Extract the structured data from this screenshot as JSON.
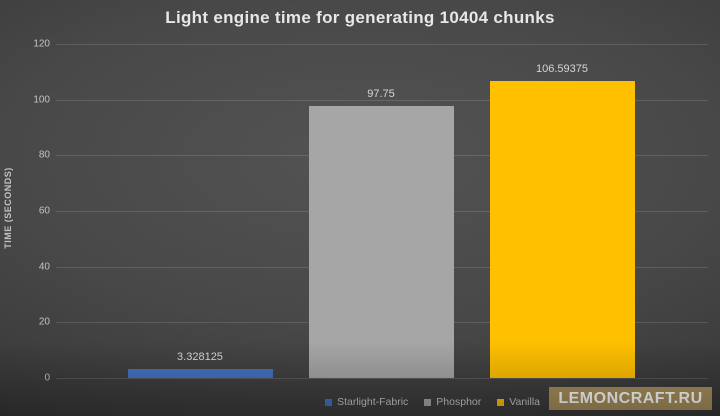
{
  "title": "Light engine time for generating 10404 chunks",
  "chart_data": {
    "type": "bar",
    "categories": [
      "Starlight-Fabric",
      "Phosphor",
      "Vanilla"
    ],
    "values": [
      3.328125,
      97.75,
      106.59375
    ],
    "value_labels": [
      "3.328125",
      "97.75",
      "106.59375"
    ],
    "bar_colors": [
      "#4472c4",
      "#a6a6a6",
      "#ffc000"
    ],
    "title": "Light engine time for generating 10404 chunks",
    "xlabel": "",
    "ylabel": "TIME (SECONDS)",
    "ylim": [
      0,
      120
    ],
    "yticks": [
      0,
      20,
      40,
      60,
      80,
      100,
      120
    ],
    "grid": true,
    "legend_position": "bottom-center"
  },
  "legend": {
    "items": [
      {
        "label": "Starlight-Fabric",
        "color": "#4472c4"
      },
      {
        "label": "Phosphor",
        "color": "#a6a6a6"
      },
      {
        "label": "Vanilla",
        "color": "#ffc000"
      }
    ]
  },
  "watermark": {
    "text": "LEMONCRAFT.RU",
    "background": "#a68f5d",
    "text_color": "#ffffff"
  },
  "colors": {
    "background_center": "#535353",
    "background_edge": "#252525",
    "title_text": "#e7e7e7",
    "axis_text": "#c3c3c3",
    "gridline": "rgba(255,255,255,0.13)"
  }
}
